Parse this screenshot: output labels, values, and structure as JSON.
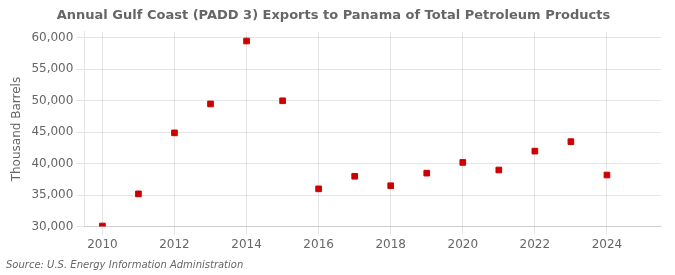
{
  "chart_data": {
    "type": "scatter",
    "title": "Annual Gulf Coast (PADD 3) Exports to Panama of Total Petroleum Products",
    "ylabel": "Thousand Barrels",
    "source": "Source: U.S. Energy Information Administration",
    "x": [
      2010,
      2011,
      2012,
      2013,
      2014,
      2015,
      2016,
      2017,
      2018,
      2019,
      2020,
      2021,
      2022,
      2023,
      2024
    ],
    "values": [
      30100,
      35200,
      44900,
      49500,
      59500,
      50000,
      36000,
      38000,
      36500,
      38500,
      40200,
      39000,
      42000,
      43500,
      38200
    ],
    "color": "#cc0000",
    "marker": "square",
    "xlim": [
      2009.5,
      2025.5
    ],
    "xticks": [
      2010,
      2012,
      2014,
      2016,
      2018,
      2020,
      2022,
      2024
    ],
    "ylim": [
      30000,
      61000
    ],
    "yticks": [
      {
        "value": 30000,
        "label": "30,000"
      },
      {
        "value": 35000,
        "label": "35,000"
      },
      {
        "value": 40000,
        "label": "40,000"
      },
      {
        "value": 45000,
        "label": "45,000"
      },
      {
        "value": 50000,
        "label": "50,000"
      },
      {
        "value": 55000,
        "label": "55,000"
      },
      {
        "value": 60000,
        "label": "60,000"
      }
    ],
    "grid": true
  }
}
